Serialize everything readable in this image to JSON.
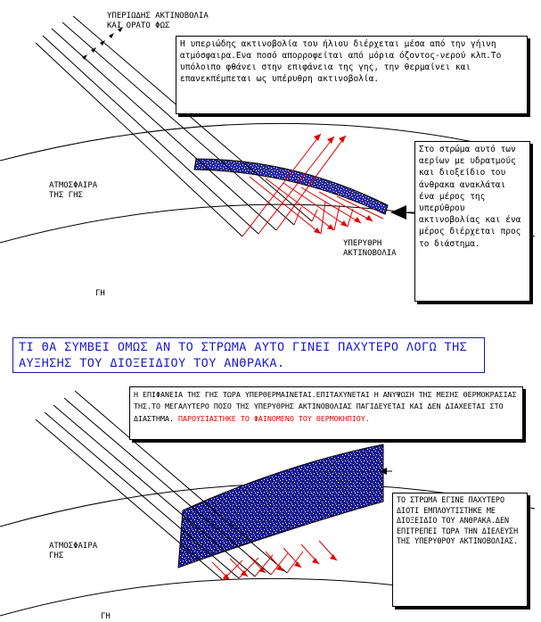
{
  "top": {
    "rays_label": "ΥΠΕΡΙΩΔΗΣ ΑΚΤΙΝΟΒΟΛΙΑ\nΚΑΙ ΟΡΑΤΟ ΦΩΣ",
    "atmosphere_label": "ΑΤΜΟΣΦΑΙΡΑ\nΤΗΣ ΓΗΣ",
    "earth_label": "ΓΗ",
    "infrared_label": "ΥΠΕΡΥΘΡΗ\nΑΚΤΙΝΟΒΟΛΙΑ",
    "info_box": "Η υπεριώδης ακτινοβολία του ήλιου διέρχεται μέσα από την γήινη ατμόσφαιρα.Ενα ποσό απορροφείται από μόρια όζοντος-νερού κλπ.Το υπόλοιπο φθάνει στην επιφάνεια της γης, την θερμαίνει και επανεκπέμπεται ως υπέρυθρη ακτινοβολία.",
    "layer_box": "Στο στρώμα αυτό των αερίων με υδρατμούς και διοξείδιο του άνθρακα ανακλάται ένα μέρος της υπερύθρου ακτινοβολίας και ένα μέρος διέρχεται προς το διάστημα."
  },
  "question": "ΤΙ ΘΑ ΣΥΜΒΕΙ ΟΜΩΣ ΑΝ ΤΟ ΣΤΡΩΜΑ ΑΥΤΟ ΓΙΝΕΙ ΠΑΧΥΤΕΡΟ ΛΟΓΩ ΤΗΣ ΑΥΞΗΣΗΣ ΤΟΥ ΔΙΟΞΕΙΔΙΟΥ ΤΟΥ ΑΝΘΡΑΚΑ.",
  "bottom": {
    "info_box_text": "Η ΕΠΙΦΑΝΕΙΑ ΤΗΣ ΓΗΣ ΤΩΡΑ ΥΠΕΡΘΕΡΜΑΙΝΕΤΑΙ.ΕΠΙΤΑΧΥΝΕΤΑΙ Η ΑΝΥΨΩΣΗ ΤΗΣ ΜΕΣΗΣ ΘΕΡΜΟΚΡΑΣΙΑΣ ΤΗΣ.ΤΟ ΜΕΓΑΛΥΤΕΡΟ ΠΟΣΟ ΤΗΣ ΥΠΕΡΥΘΡΗΣ ΑΚΤΙΝΟΒΟΛΙΑΣ ΠΑΓΙΔΕΥΕΤΑΙ ΚΑΙ ΔΕΝ ΔΙΑΧΕΕΤΑΙ ΣΤΟ ΔΙΑΣΤΗΜΑ.",
    "info_box_highlight": "ΠΑΡΟΥΣΙΑΣΤΗΚΕ ΤΟ ΦΑΙΝΟΜΕΝΟ ΤΟΥ ΘΕΡΜΟΚΗΠΙΟΥ.",
    "atmosphere_label": "ΑΤΜΟΣΦΑΙΡΑ\nΓΗΣ",
    "earth_label": "ΓΗ",
    "layer_box": "ΤΟ ΣΤΡΩΜΑ ΕΓΙΝΕ ΠΑΧΥΤΕΡΟ ΔΙΟΤΙ ΕΜΠΛΟΥΤΙΣΤΗΚΕ ΜΕ ΔΙΟΞΕΙΔΙΟ ΤΟΥ ΑΝΘΡΑΚΑ.ΔΕΝ ΕΠΙΤΡΕΠΕΙ ΤΩΡΑ ΤΗΝ ΔΙΕΛΕΥΣΗ ΤΗΣ ΥΠΕΡΥΘΡΟΥ ΑΚΤΙΝΟΒΟΛΙΑΣ."
  },
  "colors": {
    "rays": "#000000",
    "infrared": "#e00000",
    "co2_layer": "#1a1a8c",
    "question_text": "#1a1ad0"
  }
}
